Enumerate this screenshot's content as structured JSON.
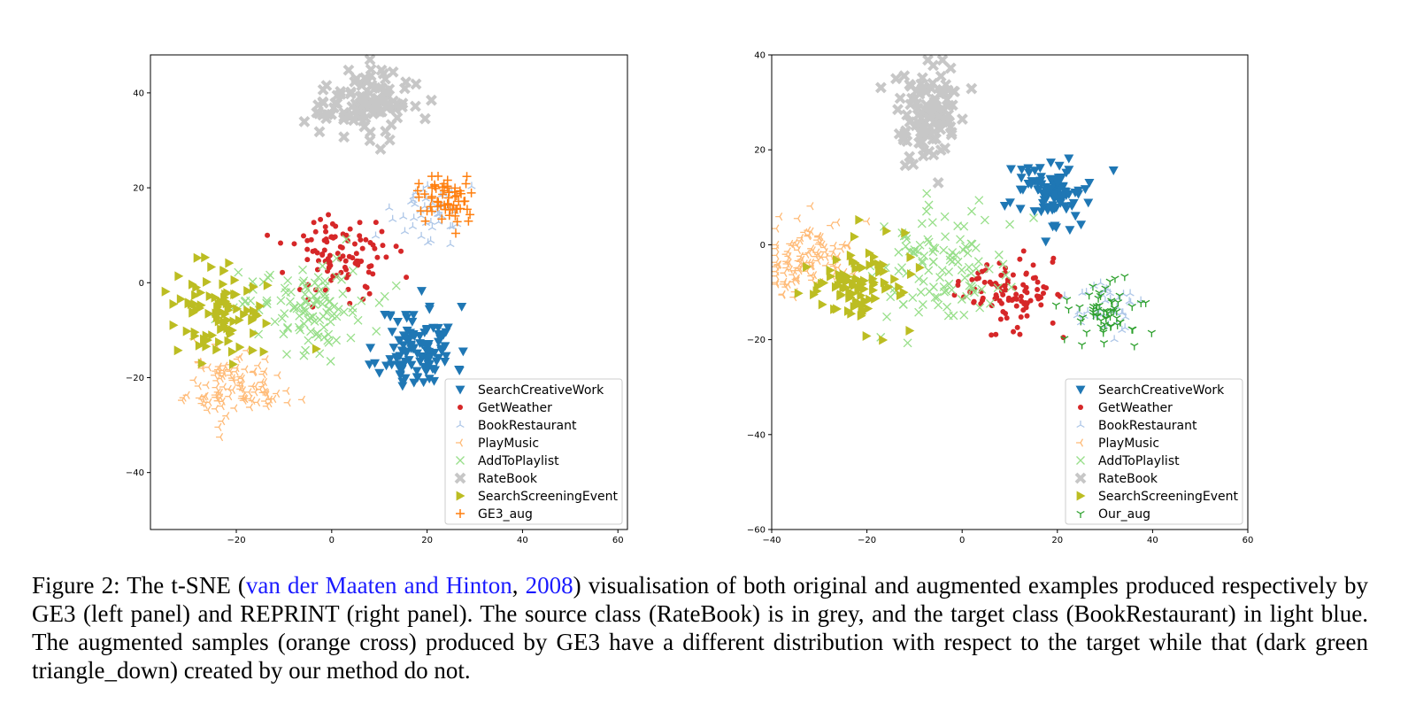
{
  "chart_data": [
    {
      "type": "scatter",
      "panel": "left",
      "xlim": [
        -38,
        62
      ],
      "ylim": [
        -52,
        48
      ],
      "xticks": [
        -20,
        0,
        20,
        40,
        60
      ],
      "yticks": [
        -40,
        -20,
        0,
        20,
        40
      ],
      "xtick_labels": [
        "−20",
        "0",
        "20",
        "40",
        "60"
      ],
      "ytick_labels": [
        "−40",
        "−20",
        "0",
        "20",
        "40"
      ],
      "legend_position": "lower-right",
      "series": [
        {
          "name": "SearchCreativeWork",
          "marker": "triangle_down",
          "color": "#1f77b4",
          "n": 110,
          "cx": 18,
          "cy": -14,
          "sx": 4,
          "sy": 4.5
        },
        {
          "name": "GetWeather",
          "marker": "dot",
          "color": "#d62728",
          "n": 100,
          "cx": 2,
          "cy": 6,
          "sx": 5.5,
          "sy": 4.5
        },
        {
          "name": "BookRestaurant",
          "marker": "tri_up",
          "color": "#aec7e8",
          "n": 45,
          "cx": 20,
          "cy": 15,
          "sx": 4,
          "sy": 3
        },
        {
          "name": "PlayMusic",
          "marker": "tri_left",
          "color": "#ffbb78",
          "n": 110,
          "cx": -20,
          "cy": -22,
          "sx": 5,
          "sy": 3.5
        },
        {
          "name": "AddToPlaylist",
          "marker": "x",
          "color": "#98df8a",
          "n": 110,
          "cx": -6,
          "cy": -4,
          "sx": 7,
          "sy": 5
        },
        {
          "name": "RateBook",
          "marker": "plus_filled",
          "color": "#c7c7c7",
          "n": 110,
          "cx": 7,
          "cy": 38,
          "sx": 4.5,
          "sy": 3.5
        },
        {
          "name": "SearchScreeningEvent",
          "marker": "triangle_right",
          "color": "#bcbd22",
          "n": 95,
          "cx": -24,
          "cy": -6,
          "sx": 4.5,
          "sy": 5
        },
        {
          "name": "GE3_aug",
          "marker": "plus",
          "color": "#ff7f0e",
          "n": 60,
          "cx": 24,
          "cy": 18,
          "sx": 3,
          "sy": 2.5
        }
      ]
    },
    {
      "type": "scatter",
      "panel": "right",
      "xlim": [
        -40,
        60
      ],
      "ylim": [
        -60,
        40
      ],
      "xticks": [
        -40,
        -20,
        0,
        20,
        40,
        60
      ],
      "yticks": [
        -60,
        -40,
        -20,
        0,
        20,
        40
      ],
      "xtick_labels": [
        "−40",
        "−20",
        "0",
        "20",
        "40",
        "60"
      ],
      "ytick_labels": [
        "−60",
        "−40",
        "−20",
        "0",
        "20",
        "40"
      ],
      "legend_position": "lower-right",
      "series": [
        {
          "name": "SearchCreativeWork",
          "marker": "triangle_down",
          "color": "#1f77b4",
          "n": 100,
          "cx": 18,
          "cy": 11,
          "sx": 4.5,
          "sy": 3.5
        },
        {
          "name": "GetWeather",
          "marker": "dot",
          "color": "#d62728",
          "n": 100,
          "cx": 9,
          "cy": -10,
          "sx": 5,
          "sy": 4
        },
        {
          "name": "BookRestaurant",
          "marker": "tri_up",
          "color": "#aec7e8",
          "n": 40,
          "cx": 30,
          "cy": -13,
          "sx": 4,
          "sy": 3
        },
        {
          "name": "PlayMusic",
          "marker": "tri_left",
          "color": "#ffbb78",
          "n": 110,
          "cx": -32,
          "cy": -3,
          "sx": 5,
          "sy": 4
        },
        {
          "name": "AddToPlaylist",
          "marker": "x",
          "color": "#98df8a",
          "n": 110,
          "cx": -4,
          "cy": -5,
          "sx": 8,
          "sy": 6
        },
        {
          "name": "RateBook",
          "marker": "plus_filled",
          "color": "#c7c7c7",
          "n": 110,
          "cx": -7,
          "cy": 27,
          "sx": 3.5,
          "sy": 5
        },
        {
          "name": "SearchScreeningEvent",
          "marker": "triangle_right",
          "color": "#bcbd22",
          "n": 95,
          "cx": -22,
          "cy": -8,
          "sx": 5,
          "sy": 4
        },
        {
          "name": "Our_aug",
          "marker": "tri_down",
          "color": "#2ca02c",
          "n": 60,
          "cx": 30,
          "cy": -14,
          "sx": 4,
          "sy": 3
        }
      ]
    }
  ],
  "caption": {
    "prefix": "Figure 2:  The t-SNE (",
    "cite_authors": "van der Maaten and Hinton",
    "cite_sep": ", ",
    "cite_year": "2008",
    "rest": ") visualisation of both original and augmented examples produced respectively by GE3 (left panel) and REPRINT (right panel). The source class (RateBook) is in grey, and the target class (BookRestaurant) in light blue. The augmented samples (orange cross) produced by GE3 have a different distribution with respect to the target while that (dark green triangle_down) created by our method do not."
  }
}
